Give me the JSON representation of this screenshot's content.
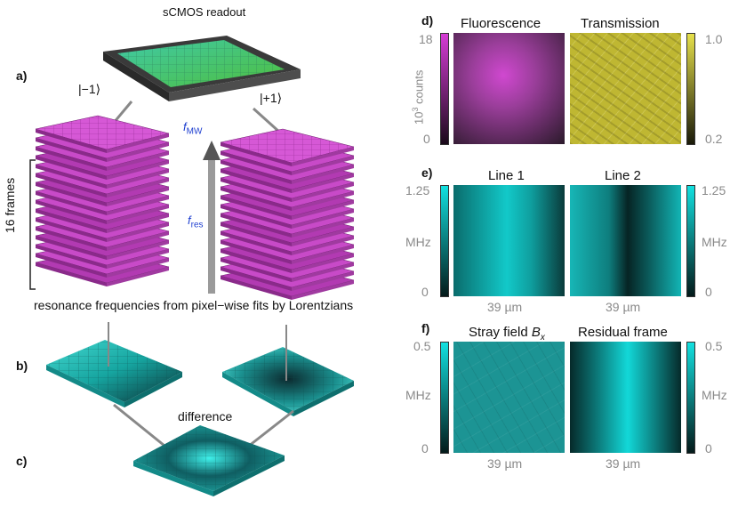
{
  "left": {
    "panel_a_label": "a)",
    "panel_b_label": "b)",
    "panel_c_label": "c)",
    "readout_label": "sCMOS readout",
    "state_minus": "|−1⟩",
    "state_plus": "|+1⟩",
    "frames_label": "16 frames",
    "fmw_label": "f",
    "fmw_sub": "MW",
    "fres_label": "f",
    "fres_sub": "res",
    "fits_caption": "resonance frequencies from pixel−wise fits by Lorentzians",
    "difference_label": "difference"
  },
  "panel_d": {
    "label": "d)",
    "title_left": "Fluorescence",
    "title_right": "Transmission",
    "axis_unit_line1": "10",
    "axis_unit_sup": "3",
    "axis_unit_line2": " counts",
    "left_max": "18",
    "left_min": "0",
    "right_max": "1.0",
    "right_min": "0.2",
    "colors": {
      "fluor": "#d63cd6",
      "trans": "#c9c23a"
    }
  },
  "panel_e": {
    "label": "e)",
    "title_left": "Line 1",
    "title_right": "Line 2",
    "left_max": "1.25",
    "left_unit": "MHz",
    "left_min": "0",
    "right_max": "1.25",
    "right_unit": "MHz",
    "right_min": "0",
    "scale_left": "39 µm",
    "scale_right": "39 µm",
    "colors": {
      "cyan": "#12c9c9",
      "dark": "#062424"
    }
  },
  "panel_f": {
    "label": "f)",
    "title_left": "Stray field ",
    "title_left_var": "B",
    "title_left_sub": "x",
    "title_right": "Residual frame",
    "left_max": "0.5",
    "left_unit": "MHz",
    "left_min": "0",
    "right_max": "0.5",
    "right_unit": "MHz",
    "right_min": "0",
    "scale_left": "39 µm",
    "scale_right": "39 µm"
  }
}
